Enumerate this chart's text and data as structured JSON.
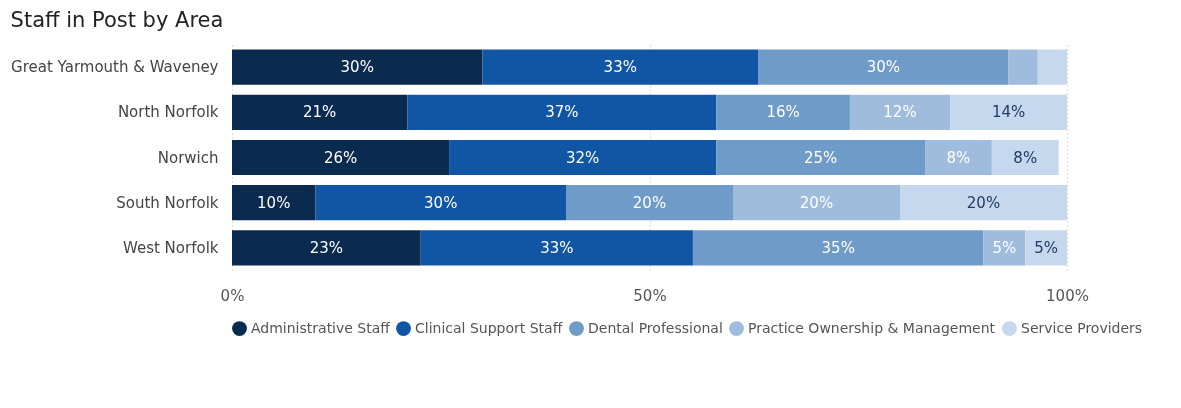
{
  "chart_data": {
    "type": "bar",
    "orientation": "horizontal",
    "stacked": true,
    "title": "Staff in Post by Area",
    "categories": [
      "Great Yarmouth & Waveney",
      "North Norfolk",
      "Norwich",
      "South Norfolk",
      "West Norfolk"
    ],
    "series": [
      {
        "name": "Administrative Staff",
        "color": "#0b2a4f",
        "values": [
          30,
          21,
          26,
          10,
          22.6
        ],
        "value_labels": [
          "30%",
          "21%",
          "26%",
          "10%",
          "23%"
        ]
      },
      {
        "name": "Clinical Support Staff",
        "color": "#1155a5",
        "values": [
          33,
          37,
          32,
          30,
          32.6
        ],
        "value_labels": [
          "33%",
          "37%",
          "32%",
          "30%",
          "33%"
        ]
      },
      {
        "name": "Dental Professional",
        "color": "#6f9bc9",
        "values": [
          30,
          16,
          25,
          20,
          34.8
        ],
        "value_labels": [
          "30%",
          "16%",
          "25%",
          "20%",
          "35%"
        ]
      },
      {
        "name": "Practice Ownership & Management",
        "color": "#9fbcdc",
        "values": [
          3.5,
          12,
          8,
          20,
          5
        ],
        "value_labels": [
          null,
          "12%",
          "8%",
          "20%",
          "5%"
        ]
      },
      {
        "name": "Service Providers",
        "color": "#c5d8ee",
        "values": [
          3.5,
          14,
          8,
          20,
          5
        ],
        "value_labels": [
          null,
          "14%",
          "8%",
          "20%",
          "5%"
        ]
      }
    ],
    "xlim": [
      0,
      100
    ],
    "xticks": [
      {
        "value": 0,
        "label": "0%"
      },
      {
        "value": 50,
        "label": "50%"
      },
      {
        "value": 100,
        "label": "100%"
      }
    ],
    "grid": "x",
    "legend": "bottom"
  }
}
